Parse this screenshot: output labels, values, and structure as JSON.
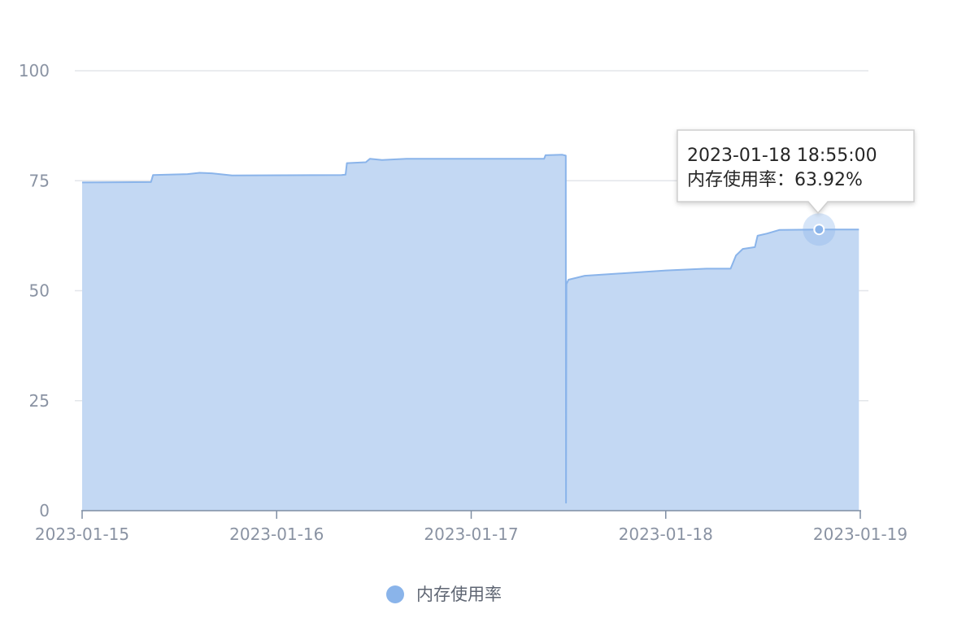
{
  "chart_data": {
    "type": "area",
    "x_axis": {
      "type": "time",
      "range": [
        "2023-01-15 00:00",
        "2023-01-19 00:00"
      ],
      "ticks": [
        "2023-01-15",
        "2023-01-16",
        "2023-01-17",
        "2023-01-18",
        "2023-01-19"
      ]
    },
    "y_axis": {
      "range": [
        0,
        100
      ],
      "ticks": [
        0,
        25,
        50,
        75,
        100
      ]
    },
    "grid": "horizontal",
    "legend": {
      "position": "bottom-center"
    },
    "series": [
      {
        "name": "内存使用率",
        "color": "#8ab4ea",
        "fill_color": "#c3d8f3",
        "points": [
          [
            "2023-01-15 00:00",
            74.6
          ],
          [
            "2023-01-15 08:30",
            74.7
          ],
          [
            "2023-01-15 08:45",
            76.3
          ],
          [
            "2023-01-15 13:00",
            76.5
          ],
          [
            "2023-01-15 14:30",
            76.8
          ],
          [
            "2023-01-15 16:00",
            76.7
          ],
          [
            "2023-01-15 18:30",
            76.2
          ],
          [
            "2023-01-16 08:00",
            76.3
          ],
          [
            "2023-01-16 08:30",
            76.4
          ],
          [
            "2023-01-16 08:40",
            79.0
          ],
          [
            "2023-01-16 11:00",
            79.2
          ],
          [
            "2023-01-16 11:30",
            80.0
          ],
          [
            "2023-01-16 13:00",
            79.7
          ],
          [
            "2023-01-16 16:00",
            80.0
          ],
          [
            "2023-01-17 00:00",
            80.0
          ],
          [
            "2023-01-17 09:00",
            80.0
          ],
          [
            "2023-01-17 09:10",
            80.8
          ],
          [
            "2023-01-17 11:15",
            80.9
          ],
          [
            "2023-01-17 11:40",
            80.7
          ],
          [
            "2023-01-17 11:42",
            1.8
          ],
          [
            "2023-01-17 11:45",
            51.5
          ],
          [
            "2023-01-17 12:00",
            52.5
          ],
          [
            "2023-01-17 14:00",
            53.4
          ],
          [
            "2023-01-17 20:00",
            54.1
          ],
          [
            "2023-01-18 00:00",
            54.6
          ],
          [
            "2023-01-18 05:00",
            55.0
          ],
          [
            "2023-01-18 08:00",
            55.0
          ],
          [
            "2023-01-18 08:40",
            58.0
          ],
          [
            "2023-01-18 09:30",
            59.5
          ],
          [
            "2023-01-18 11:00",
            59.9
          ],
          [
            "2023-01-18 11:20",
            62.5
          ],
          [
            "2023-01-18 12:30",
            63.0
          ],
          [
            "2023-01-18 14:00",
            63.8
          ],
          [
            "2023-01-18 18:55",
            63.92
          ],
          [
            "2023-01-18 23:50",
            63.9
          ]
        ]
      }
    ],
    "tooltip": {
      "time": "2023-01-18 18:55:00",
      "series_label": "内存使用率",
      "separator": "：",
      "value_text": "63.92%",
      "x": "2023-01-18 18:55",
      "y": 63.92
    }
  }
}
